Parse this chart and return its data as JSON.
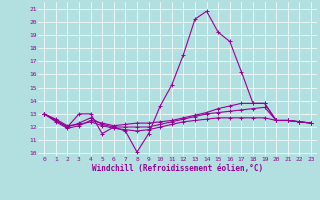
{
  "xlabel": "Windchill (Refroidissement éolien,°C)",
  "background_color": "#b2dfdf",
  "grid_color": "#ffffff",
  "line_color": "#990099",
  "ylim": [
    9.8,
    21.5
  ],
  "xlim": [
    -0.5,
    23.5
  ],
  "xticks": [
    0,
    1,
    2,
    3,
    4,
    5,
    6,
    7,
    8,
    9,
    10,
    11,
    12,
    13,
    14,
    15,
    16,
    17,
    18,
    19,
    20,
    21,
    22,
    23
  ],
  "yticks": [
    10,
    11,
    12,
    13,
    14,
    15,
    16,
    17,
    18,
    19,
    20,
    21
  ],
  "series": [
    [
      13.0,
      12.5,
      12.0,
      13.0,
      13.0,
      11.5,
      12.0,
      11.7,
      10.1,
      11.5,
      13.6,
      15.2,
      17.5,
      20.2,
      20.8,
      19.2,
      18.5,
      16.2,
      13.8,
      13.8,
      12.5,
      12.5,
      12.4,
      12.3
    ],
    [
      13.0,
      12.5,
      12.0,
      12.3,
      12.7,
      12.2,
      12.0,
      12.0,
      12.0,
      12.0,
      12.2,
      12.4,
      12.6,
      12.8,
      13.0,
      13.1,
      13.2,
      13.3,
      13.4,
      13.5,
      12.5,
      12.5,
      12.4,
      12.3
    ],
    [
      13.0,
      12.6,
      12.1,
      12.2,
      12.4,
      12.1,
      11.9,
      11.8,
      11.7,
      11.8,
      12.0,
      12.2,
      12.4,
      12.5,
      12.6,
      12.7,
      12.7,
      12.7,
      12.7,
      12.7,
      12.5,
      12.5,
      12.4,
      12.3
    ],
    [
      13.0,
      12.4,
      11.9,
      12.1,
      12.5,
      12.3,
      12.1,
      12.2,
      12.3,
      12.3,
      12.4,
      12.5,
      12.7,
      12.9,
      13.1,
      13.4,
      13.6,
      13.8,
      13.8,
      13.8,
      12.5,
      12.5,
      12.4,
      12.3
    ]
  ],
  "marker": "+",
  "markersize": 3,
  "linewidth": 0.8,
  "tick_fontsize": 4.5,
  "label_fontsize": 5.5
}
